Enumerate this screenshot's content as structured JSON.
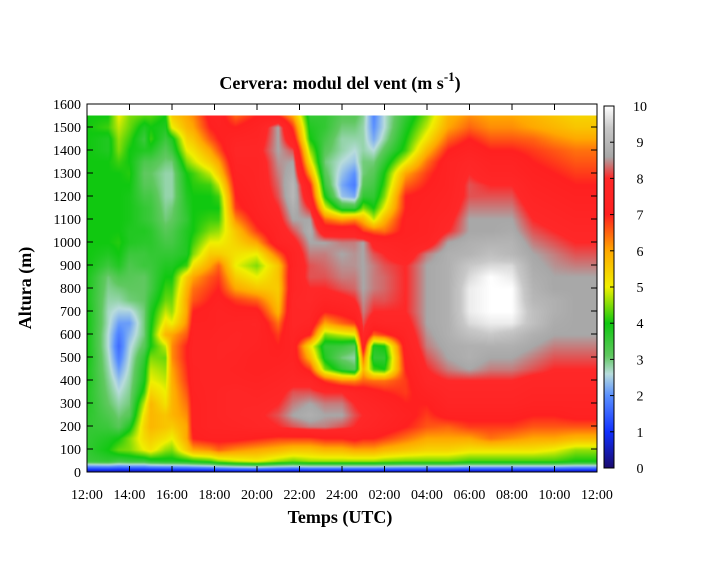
{
  "chart_data": {
    "type": "heatmap",
    "title": {
      "main": "Cervera: modul del vent (m s",
      "sup": "-1",
      "close": ")"
    },
    "xlabel": "Temps (UTC)",
    "ylabel": "Altura (m)",
    "x_ticks": [
      "12:00",
      "14:00",
      "16:00",
      "18:00",
      "20:00",
      "22:00",
      "24:00",
      "02:00",
      "04:00",
      "06:00",
      "08:00",
      "10:00",
      "12:00"
    ],
    "y_ticks": [
      0,
      100,
      200,
      300,
      400,
      500,
      600,
      700,
      800,
      900,
      1000,
      1100,
      1200,
      1300,
      1400,
      1500,
      1600
    ],
    "ylim": [
      0,
      1600
    ],
    "xlim_hours": [
      0,
      24
    ],
    "data_top_altitude": 1550,
    "colorbar": {
      "min": 0,
      "max": 10,
      "ticks": [
        0,
        1,
        2,
        3,
        4,
        5,
        6,
        7,
        8,
        9,
        10
      ]
    },
    "colormap": [
      {
        "v": 0,
        "c": "#1a0a6e"
      },
      {
        "v": 1,
        "c": "#1030ff"
      },
      {
        "v": 2,
        "c": "#5a90ff"
      },
      {
        "v": 2.6,
        "c": "#b8dcdc"
      },
      {
        "v": 3.1,
        "c": "#60c860"
      },
      {
        "v": 4,
        "c": "#10c810"
      },
      {
        "v": 5,
        "c": "#f0f000"
      },
      {
        "v": 6,
        "c": "#ffa800"
      },
      {
        "v": 7,
        "c": "#ff2020"
      },
      {
        "v": 8,
        "c": "#ff2828"
      },
      {
        "v": 8.6,
        "c": "#a8a8a8"
      },
      {
        "v": 9.4,
        "c": "#c8c8c8"
      },
      {
        "v": 10,
        "c": "#ffffff"
      }
    ],
    "altitudes": [
      0,
      50,
      100,
      150,
      200,
      250,
      300,
      350,
      400,
      450,
      500,
      550,
      600,
      650,
      700,
      750,
      800,
      850,
      900,
      950,
      1000,
      1050,
      1100,
      1150,
      1200,
      1250,
      1300,
      1350,
      1400,
      1450,
      1500,
      1550
    ],
    "profiles": [
      {
        "t": 0,
        "v": [
          0,
          3.5,
          3.6,
          3.6,
          3.6,
          3.7,
          3.8,
          3.8,
          3.9,
          3.9,
          4.0,
          4.0,
          4.0,
          4.0,
          4.0,
          3.9,
          3.9,
          3.9,
          4.0,
          4.0,
          4.0,
          4.0,
          4.0,
          4.0,
          4.0,
          4.0,
          4.0,
          4.0,
          4.0,
          4.0,
          4.0,
          4.0
        ]
      },
      {
        "t": 1,
        "v": [
          0,
          3.6,
          4.0,
          3.8,
          3.5,
          3.3,
          3.1,
          3.0,
          2.9,
          2.8,
          2.7,
          2.6,
          2.6,
          2.7,
          2.7,
          2.8,
          2.9,
          3.0,
          3.5,
          3.8,
          4.0,
          4.0,
          4.0,
          4.0,
          4.0,
          4.0,
          4.0,
          4.0,
          3.8,
          3.8,
          4.2,
          4.0
        ]
      },
      {
        "t": 1.5,
        "v": [
          0,
          3.4,
          4.4,
          4.0,
          3.2,
          3.0,
          2.8,
          2.6,
          2.4,
          2.1,
          1.8,
          1.6,
          1.8,
          2.1,
          2.5,
          2.8,
          3.0,
          3.3,
          3.8,
          4.0,
          4.1,
          4.0,
          4.0,
          4.0,
          4.0,
          4.0,
          4.0,
          4.2,
          4.5,
          4.6,
          4.8,
          5.0
        ]
      },
      {
        "t": 2,
        "v": [
          0,
          3.5,
          4.5,
          4.5,
          3.8,
          3.2,
          3.0,
          2.9,
          2.8,
          2.7,
          2.6,
          2.5,
          2.3,
          2.1,
          2.5,
          3.0,
          3.1,
          3.2,
          3.3,
          3.5,
          3.8,
          3.8,
          3.9,
          3.9,
          3.9,
          4.0,
          4.1,
          4.0,
          4.0,
          4.2,
          4.4,
          4.5
        ]
      },
      {
        "t": 2.7,
        "v": [
          0,
          3.5,
          5.0,
          5.3,
          5.4,
          5.2,
          4.8,
          4.2,
          3.9,
          3.8,
          3.6,
          3.2,
          3.0,
          3.0,
          3.0,
          3.1,
          3.1,
          3.1,
          3.5,
          3.5,
          3.7,
          3.8,
          3.6,
          3.6,
          3.4,
          3.2,
          3.1,
          3.3,
          3.8,
          3.5,
          3.8,
          4.3
        ]
      },
      {
        "t": 3,
        "v": [
          0,
          3.7,
          5.2,
          5.5,
          5.8,
          5.8,
          5.8,
          5.4,
          5.0,
          4.8,
          4.5,
          4.0,
          4.0,
          3.9,
          3.8,
          3.6,
          3.4,
          3.4,
          3.5,
          3.6,
          3.7,
          3.7,
          3.5,
          3.5,
          3.4,
          3.2,
          3.1,
          3.3,
          3.8,
          4.2,
          4.0,
          4.3
        ]
      },
      {
        "t": 3.7,
        "v": [
          0,
          3.8,
          4.6,
          5.2,
          5.6,
          5.6,
          5.2,
          5.0,
          4.8,
          4.6,
          4.4,
          4.8,
          5.8,
          5.2,
          4.8,
          4.4,
          4.2,
          4.0,
          3.8,
          3.6,
          3.4,
          3.2,
          3.0,
          2.9,
          2.8,
          2.8,
          2.8,
          3.0,
          3.2,
          3.5,
          3.8,
          4.0
        ]
      },
      {
        "t": 4,
        "v": [
          0,
          3.8,
          4.5,
          5.0,
          5.5,
          5.8,
          5.8,
          5.8,
          5.9,
          6.0,
          6.2,
          6.2,
          6.0,
          5.0,
          4.6,
          4.4,
          4.2,
          4.0,
          3.8,
          3.6,
          3.4,
          3.3,
          3.1,
          3.0,
          2.8,
          2.8,
          2.8,
          3.0,
          3.5,
          3.8,
          5.0,
          5.5
        ]
      },
      {
        "t": 4.7,
        "v": [
          0,
          3.9,
          5.5,
          6.0,
          6.0,
          6.2,
          6.4,
          6.6,
          6.8,
          6.9,
          7.0,
          7.0,
          6.6,
          6.2,
          6.0,
          6.0,
          5.8,
          5.5,
          4.2,
          3.8,
          3.8,
          3.8,
          3.6,
          3.7,
          3.8,
          3.9,
          4.0,
          4.5,
          5.0,
          5.4,
          5.8,
          6.0
        ]
      },
      {
        "t": 5,
        "v": [
          0,
          4.0,
          6.0,
          7.0,
          7.2,
          7.2,
          7.2,
          7.3,
          7.4,
          7.4,
          7.5,
          7.5,
          7.4,
          7.2,
          7.0,
          6.6,
          6.4,
          6.0,
          5.2,
          4.5,
          4.2,
          4.0,
          4.0,
          4.0,
          4.0,
          4.1,
          4.2,
          4.8,
          5.2,
          5.6,
          6.0,
          6.2
        ]
      },
      {
        "t": 5.8,
        "v": [
          0,
          4.2,
          6.2,
          7.2,
          7.5,
          7.5,
          7.5,
          7.5,
          7.5,
          7.5,
          7.5,
          7.5,
          7.4,
          7.2,
          7.2,
          7.0,
          6.8,
          6.6,
          6.0,
          5.5,
          5.0,
          4.5,
          4.2,
          4.0,
          4.0,
          4.2,
          4.8,
          5.5,
          6.0,
          6.6,
          7.0,
          7.2
        ]
      },
      {
        "t": 6.2,
        "v": [
          0,
          4.5,
          6.5,
          7.2,
          7.5,
          7.6,
          7.6,
          7.6,
          7.5,
          7.5,
          7.6,
          7.6,
          7.5,
          7.4,
          7.4,
          7.2,
          7.0,
          6.8,
          6.5,
          5.5,
          5.0,
          4.6,
          4.2,
          4.0,
          4.2,
          4.8,
          5.5,
          6.0,
          6.6,
          7.0,
          7.2,
          7.3
        ]
      },
      {
        "t": 7,
        "v": [
          0,
          4.8,
          6.2,
          7.2,
          7.6,
          7.8,
          7.8,
          7.8,
          7.5,
          7.4,
          7.5,
          7.6,
          7.6,
          7.5,
          7.2,
          6.8,
          6.0,
          5.5,
          5.0,
          5.2,
          5.4,
          5.6,
          6.2,
          6.8,
          7.0,
          7.2,
          7.4,
          7.6,
          7.8,
          7.5,
          7.0,
          6.5
        ]
      },
      {
        "t": 8,
        "v": [
          0,
          5.0,
          6.0,
          7.0,
          7.8,
          7.9,
          7.8,
          7.6,
          7.4,
          7.2,
          7.2,
          7.4,
          7.5,
          7.6,
          7.2,
          6.5,
          5.6,
          5.0,
          4.5,
          5.0,
          6.0,
          6.8,
          7.2,
          7.4,
          7.5,
          7.6,
          7.6,
          7.6,
          7.8,
          7.6,
          7.4,
          7.0
        ]
      },
      {
        "t": 9,
        "v": [
          0,
          4.6,
          5.8,
          6.8,
          8.0,
          8.2,
          8.0,
          7.8,
          7.6,
          7.4,
          7.2,
          7.0,
          6.8,
          6.4,
          5.8,
          5.6,
          5.5,
          5.6,
          5.6,
          6.5,
          7.5,
          7.6,
          7.8,
          8.0,
          8.2,
          8.3,
          8.4,
          8.5,
          8.6,
          8.6,
          8.6,
          7.0
        ]
      },
      {
        "t": 9.7,
        "v": [
          0,
          4.4,
          5.6,
          6.8,
          8.2,
          8.6,
          8.4,
          8.2,
          7.8,
          7.6,
          7.4,
          7.4,
          7.6,
          7.8,
          7.8,
          7.8,
          7.6,
          7.6,
          7.5,
          7.5,
          7.8,
          8.2,
          8.6,
          8.8,
          9.0,
          9.0,
          8.8,
          8.6,
          8.2,
          7.4,
          6.8,
          6.0
        ]
      },
      {
        "t": 10.5,
        "v": [
          0,
          4.6,
          5.6,
          6.8,
          8.4,
          8.8,
          8.6,
          8.2,
          7.8,
          6.8,
          5.8,
          5.2,
          7.0,
          7.6,
          7.8,
          8.0,
          8.0,
          8.2,
          8.2,
          8.4,
          8.6,
          8.8,
          8.6,
          8.0,
          7.4,
          7.0,
          6.0,
          5.2,
          4.6,
          4.0,
          3.8,
          3.6
        ]
      },
      {
        "t": 11.2,
        "v": [
          0,
          4.6,
          5.8,
          7.0,
          8.4,
          8.6,
          8.4,
          8.0,
          6.8,
          4.5,
          3.8,
          3.6,
          4.5,
          6.0,
          7.0,
          7.6,
          8.0,
          8.2,
          8.3,
          8.4,
          8.6,
          7.5,
          6.5,
          5.0,
          4.0,
          3.5,
          3.2,
          3.0,
          3.2,
          3.4,
          3.6,
          3.6
        ]
      },
      {
        "t": 12,
        "v": [
          0,
          4.6,
          5.8,
          7.0,
          8.2,
          8.6,
          8.4,
          8.0,
          6.2,
          3.6,
          3.0,
          3.5,
          4.8,
          6.5,
          7.2,
          7.8,
          8.2,
          8.4,
          8.5,
          8.6,
          8.4,
          7.6,
          6.0,
          3.6,
          2.4,
          2.2,
          2.4,
          2.6,
          2.8,
          2.8,
          3.0,
          3.2
        ]
      },
      {
        "t": 12.6,
        "v": [
          0,
          4.6,
          6.0,
          7.2,
          8.0,
          8.2,
          8.0,
          7.6,
          6.2,
          3.2,
          2.8,
          3.2,
          5.0,
          6.8,
          7.5,
          8.0,
          8.3,
          8.4,
          8.5,
          8.5,
          8.4,
          7.6,
          6.2,
          3.5,
          2.2,
          1.8,
          2.0,
          2.4,
          2.6,
          2.8,
          3.0,
          3.2
        ]
      },
      {
        "t": 13,
        "v": [
          0,
          4.6,
          6.0,
          7.0,
          7.8,
          8.0,
          7.8,
          7.4,
          6.5,
          5.8,
          6.5,
          7.5,
          8.0,
          8.2,
          8.4,
          8.5,
          8.6,
          8.6,
          8.6,
          8.6,
          8.6,
          6.8,
          5.8,
          4.5,
          3.6,
          3.2,
          3.0,
          3.0,
          2.8,
          2.8,
          2.8,
          2.9
        ]
      },
      {
        "t": 13.5,
        "v": [
          0,
          4.6,
          6.0,
          7.0,
          7.6,
          7.8,
          7.6,
          7.2,
          6.4,
          4.2,
          3.6,
          3.8,
          6.5,
          7.6,
          8.0,
          8.2,
          8.4,
          8.4,
          8.4,
          8.2,
          7.8,
          6.5,
          4.8,
          4.0,
          3.6,
          3.4,
          3.2,
          3.0,
          2.6,
          2.2,
          2.0,
          1.9
        ]
      },
      {
        "t": 14,
        "v": [
          0,
          4.5,
          5.8,
          6.8,
          7.4,
          7.6,
          7.4,
          7.0,
          6.4,
          4.0,
          3.6,
          4.0,
          6.8,
          7.8,
          8.0,
          8.2,
          8.3,
          8.3,
          8.2,
          8.0,
          7.6,
          6.4,
          5.8,
          5.0,
          4.5,
          4.2,
          4.0,
          3.6,
          3.2,
          2.8,
          2.6,
          2.6
        ]
      },
      {
        "t": 15,
        "v": [
          0,
          4.4,
          5.6,
          6.4,
          7.0,
          7.2,
          7.0,
          6.8,
          6.8,
          7.0,
          7.2,
          7.4,
          7.6,
          7.8,
          8.0,
          8.0,
          8.0,
          8.0,
          8.0,
          7.6,
          7.4,
          7.2,
          7.2,
          7.0,
          7.0,
          6.5,
          6.0,
          5.0,
          4.2,
          4.0,
          3.8,
          3.6
        ]
      },
      {
        "t": 16,
        "v": [
          0,
          4.4,
          5.4,
          6.0,
          6.6,
          6.8,
          7.0,
          7.4,
          7.8,
          8.0,
          8.2,
          8.4,
          8.5,
          8.6,
          8.6,
          8.6,
          8.6,
          8.6,
          8.6,
          8.4,
          7.6,
          7.4,
          7.4,
          7.3,
          7.2,
          7.0,
          6.8,
          6.4,
          5.8,
          5.2,
          4.8,
          4.5
        ]
      },
      {
        "t": 17,
        "v": [
          0,
          4.4,
          5.4,
          6.0,
          6.5,
          7.2,
          7.6,
          7.8,
          8.0,
          8.4,
          8.6,
          8.7,
          8.8,
          8.8,
          8.8,
          8.8,
          8.8,
          8.8,
          8.8,
          8.8,
          8.6,
          8.0,
          7.8,
          7.6,
          7.5,
          7.4,
          7.4,
          7.4,
          7.0,
          6.5,
          6.0,
          5.8
        ]
      },
      {
        "t": 18,
        "v": [
          0,
          4.2,
          5.2,
          6.0,
          6.8,
          7.2,
          7.6,
          7.8,
          8.0,
          8.6,
          8.8,
          8.8,
          9.2,
          9.6,
          9.8,
          9.8,
          9.8,
          9.6,
          9.4,
          8.9,
          8.8,
          8.6,
          8.6,
          8.4,
          8.2,
          8.2,
          8.0,
          7.8,
          7.4,
          7.0,
          6.5,
          6.2
        ]
      },
      {
        "t": 19,
        "v": [
          0,
          4.2,
          5.2,
          6.4,
          6.8,
          7.2,
          7.6,
          7.8,
          8.0,
          8.4,
          8.6,
          8.8,
          9.4,
          9.8,
          10.0,
          10.0,
          10.0,
          10.0,
          9.6,
          9.2,
          8.9,
          8.6,
          8.6,
          8.4,
          8.2,
          8.0,
          7.6,
          7.4,
          7.0,
          6.6,
          6.2,
          6.0
        ]
      },
      {
        "t": 20,
        "v": [
          0,
          4.2,
          5.2,
          6.2,
          6.8,
          7.2,
          7.6,
          7.8,
          8.0,
          8.4,
          8.6,
          8.8,
          9.2,
          9.8,
          10.0,
          10.0,
          10.0,
          9.8,
          9.6,
          9.0,
          8.9,
          8.7,
          8.6,
          8.4,
          8.2,
          8.0,
          7.6,
          7.4,
          7.0,
          6.6,
          6.2,
          6.0
        ]
      },
      {
        "t": 21,
        "v": [
          0,
          4.2,
          5.2,
          6.0,
          6.6,
          7.0,
          7.4,
          7.6,
          7.8,
          8.2,
          8.4,
          8.6,
          8.8,
          9.2,
          9.2,
          9.0,
          8.9,
          8.8,
          8.7,
          8.6,
          8.4,
          8.2,
          8.0,
          7.8,
          7.6,
          7.4,
          7.2,
          7.0,
          6.8,
          6.5,
          6.0,
          5.8
        ]
      },
      {
        "t": 22,
        "v": [
          0,
          4.2,
          5.0,
          6.0,
          6.6,
          7.0,
          7.4,
          7.6,
          7.8,
          8.0,
          8.2,
          8.4,
          8.6,
          8.7,
          8.8,
          8.8,
          8.6,
          8.6,
          8.5,
          8.4,
          8.2,
          8.0,
          7.8,
          7.6,
          7.4,
          7.2,
          7.0,
          6.8,
          6.6,
          6.2,
          5.8,
          5.6
        ]
      },
      {
        "t": 23,
        "v": [
          0,
          4.0,
          4.6,
          5.8,
          6.6,
          7.2,
          7.4,
          7.6,
          7.8,
          8.0,
          8.2,
          8.4,
          8.6,
          8.6,
          8.6,
          8.6,
          8.6,
          8.6,
          8.4,
          8.2,
          8.0,
          7.8,
          7.6,
          7.4,
          7.2,
          7.0,
          6.8,
          6.6,
          6.4,
          6.0,
          5.6,
          5.4
        ]
      },
      {
        "t": 24,
        "v": [
          0,
          4.0,
          4.6,
          5.8,
          6.6,
          7.2,
          7.4,
          7.6,
          7.8,
          8.0,
          8.2,
          8.4,
          8.6,
          8.6,
          8.6,
          8.6,
          8.6,
          8.6,
          8.4,
          8.2,
          8.0,
          7.8,
          7.6,
          7.4,
          7.2,
          7.0,
          6.8,
          6.6,
          6.4,
          6.0,
          5.6,
          5.4
        ]
      }
    ]
  }
}
